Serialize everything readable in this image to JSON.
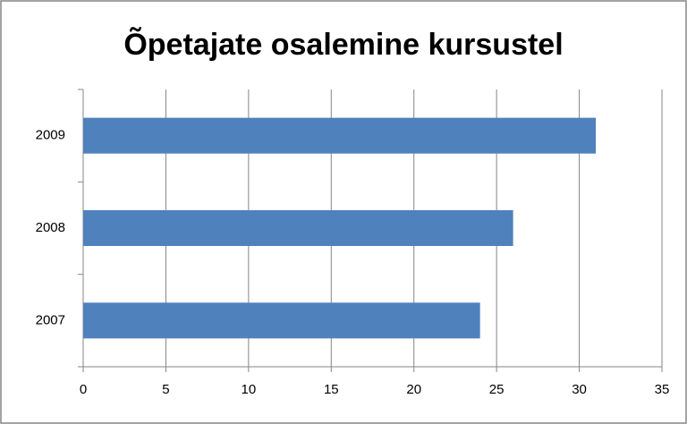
{
  "chart_data": {
    "type": "hbar",
    "title": "Õpetajate osalemine kursustel",
    "categories": [
      "2007",
      "2008",
      "2009"
    ],
    "values": [
      24,
      26,
      31
    ],
    "color": "#4f81bd",
    "xlim": [
      0,
      35
    ],
    "xticks": [
      0,
      5,
      10,
      15,
      20,
      25,
      30,
      35
    ],
    "grid": true
  }
}
